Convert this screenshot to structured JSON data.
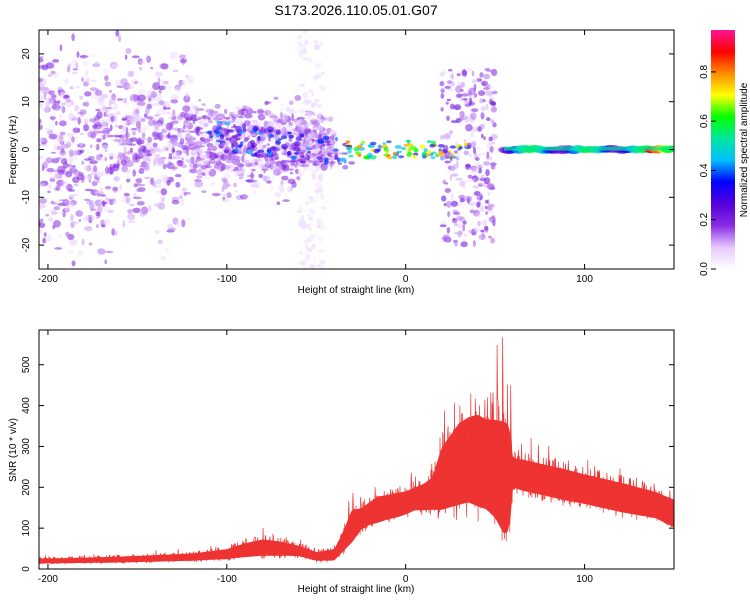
{
  "chart_data": [
    {
      "type": "heatmap",
      "title": "S173.2026.110.05.01.G07",
      "xlabel": "Height of straight line (km)",
      "ylabel": "Frequency (Hz)",
      "xlim": [
        -205,
        150
      ],
      "ylim": [
        -25,
        25
      ],
      "xticks": [
        -200,
        -100,
        0,
        100
      ],
      "yticks": [
        -20,
        -10,
        0,
        10,
        20
      ],
      "colorbar": {
        "label": "Normalized spectral amplitude",
        "range": [
          0.0,
          0.97
        ],
        "ticks": [
          0.0,
          0.2,
          0.4,
          0.6,
          0.8
        ],
        "colors": [
          "#ffffff",
          "#e6c8ff",
          "#8a2be2",
          "#5500dd",
          "#0000ff",
          "#00bfff",
          "#00e5a0",
          "#00ff00",
          "#ffff00",
          "#ff8c00",
          "#ff0000",
          "#ff1493"
        ]
      },
      "features": [
        {
          "name": "scatter-cloud",
          "x": [
            -205,
            -55
          ],
          "y": [
            -25,
            25
          ]
        },
        {
          "name": "secondary-cloud",
          "x": [
            20,
            50
          ],
          "y": [
            -20,
            17
          ]
        },
        {
          "name": "dominant-line",
          "x": [
            55,
            150
          ],
          "y": [
            -1,
            1
          ],
          "peak_amplitude": 0.95
        }
      ]
    },
    {
      "type": "line",
      "xlabel": "Height of straight line (km)",
      "ylabel": "SNR (10 * v/v)",
      "xlim": [
        -205,
        150
      ],
      "ylim": [
        0,
        585
      ],
      "xticks": [
        -200,
        -100,
        0,
        100
      ],
      "yticks": [
        0,
        100,
        200,
        300,
        400,
        500
      ],
      "color": "#ee3333",
      "series": [
        {
          "name": "SNR",
          "x": [
            -205,
            -180,
            -160,
            -140,
            -120,
            -100,
            -90,
            -80,
            -70,
            -60,
            -50,
            -40,
            -35,
            -30,
            -25,
            -20,
            -15,
            -10,
            -5,
            0,
            5,
            10,
            15,
            20,
            25,
            30,
            35,
            40,
            45,
            50,
            55,
            58,
            60,
            65,
            70,
            80,
            90,
            100,
            110,
            120,
            130,
            140,
            150
          ],
          "mean": [
            20,
            22,
            24,
            27,
            30,
            38,
            48,
            55,
            52,
            46,
            32,
            36,
            70,
            110,
            125,
            140,
            150,
            155,
            160,
            165,
            175,
            180,
            190,
            230,
            250,
            270,
            280,
            280,
            270,
            260,
            240,
            240,
            240,
            235,
            230,
            220,
            210,
            200,
            190,
            180,
            170,
            160,
            140
          ],
          "upper": [
            35,
            38,
            42,
            47,
            52,
            68,
            90,
            105,
            95,
            78,
            58,
            70,
            130,
            210,
            190,
            210,
            230,
            230,
            235,
            235,
            245,
            260,
            290,
            420,
            470,
            520,
            540,
            560,
            545,
            560,
            585,
            560,
            330,
            330,
            325,
            315,
            305,
            290,
            280,
            270,
            255,
            240,
            225
          ]
        }
      ]
    }
  ]
}
